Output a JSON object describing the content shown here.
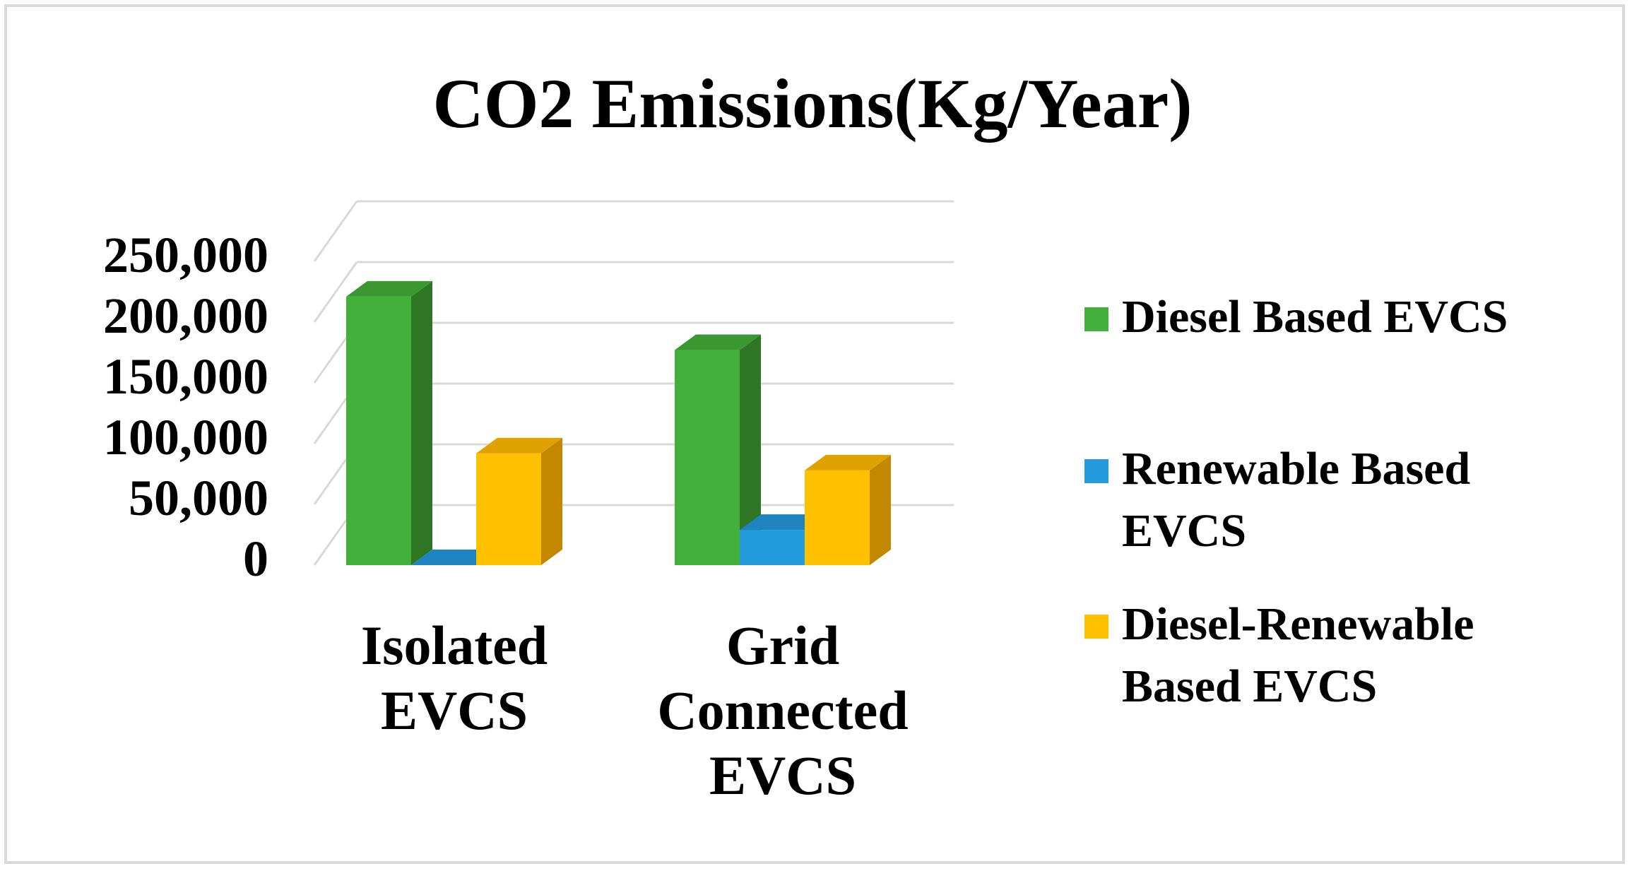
{
  "chart_data": {
    "type": "bar",
    "title": "CO2 Emissions(Kg/Year)",
    "xlabel": "",
    "ylabel": "",
    "ylim": [
      0,
      250000
    ],
    "grid": true,
    "legend_position": "right",
    "y_ticks": [
      {
        "value": 0,
        "label": "0"
      },
      {
        "value": 50000,
        "label": "50,000"
      },
      {
        "value": 100000,
        "label": "100,000"
      },
      {
        "value": 150000,
        "label": "150,000"
      },
      {
        "value": 200000,
        "label": "200,000"
      },
      {
        "value": 250000,
        "label": "250,000"
      }
    ],
    "categories": [
      {
        "name": "Isolated EVCS",
        "lines": [
          "Isolated",
          "EVCS"
        ]
      },
      {
        "name": "Grid Connected EVCS",
        "lines": [
          "Grid",
          "Connected",
          "EVCS"
        ]
      }
    ],
    "series": [
      {
        "name": "Diesel Based EVCS",
        "legend_lines": [
          "Diesel Based EVCS"
        ],
        "color": "#44b03c",
        "side_color": "#2e7524",
        "top_color": "#3a9732",
        "values": [
          221000,
          177000
        ]
      },
      {
        "name": "Renewable Based EVCS",
        "legend_lines": [
          "Renewable Based",
          "EVCS"
        ],
        "color": "#239bdc",
        "side_color": "#1a6fa0",
        "top_color": "#1d84bf",
        "values": [
          0,
          29000
        ]
      },
      {
        "name": "Diesel-Renewable Based EVCS",
        "legend_lines": [
          "Diesel-Renewable",
          "Based EVCS"
        ],
        "color": "#ffc000",
        "side_color": "#c38800",
        "top_color": "#dfa200",
        "values": [
          92000,
          78000
        ]
      }
    ]
  }
}
